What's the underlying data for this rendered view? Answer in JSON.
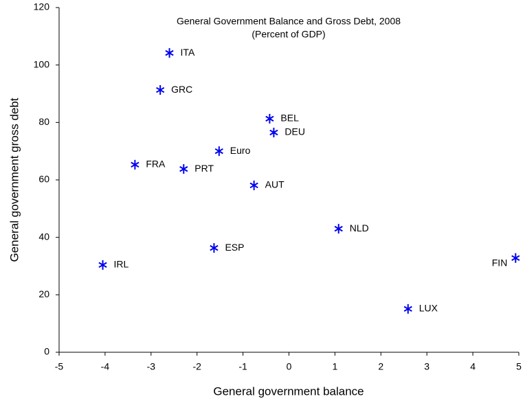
{
  "chart_data": {
    "type": "scatter",
    "title": "General Government Balance and Gross Debt, 2008",
    "subtitle": "(Percent of GDP)",
    "x_label": "General government balance",
    "y_label": "General government gross debt",
    "labels": [
      "ITA",
      "GRC",
      "BEL",
      "DEU",
      "Euro",
      "FRA",
      "PRT",
      "AUT",
      "NLD",
      "ESP",
      "IRL",
      "FIN",
      "LUX"
    ],
    "x": [
      -2.6,
      -2.8,
      -0.42,
      -0.33,
      -1.52,
      -3.35,
      -2.29,
      -0.76,
      1.08,
      -1.63,
      -4.05,
      4.93,
      2.59
    ],
    "values": [
      104.2,
      91.3,
      81.3,
      76.5,
      70.0,
      65.3,
      63.8,
      58.1,
      43.0,
      36.3,
      30.4,
      32.8,
      15.1
    ],
    "color": "#0000ee",
    "marker": "asterisk",
    "xlim": [
      -5,
      5
    ],
    "xticks": [
      -5,
      -4,
      -3,
      -2,
      -1,
      0,
      1,
      2,
      3,
      4,
      5
    ],
    "ylim": [
      0,
      120
    ],
    "yticks": [
      0,
      20,
      40,
      60,
      80,
      100,
      120
    ],
    "grid": false
  }
}
